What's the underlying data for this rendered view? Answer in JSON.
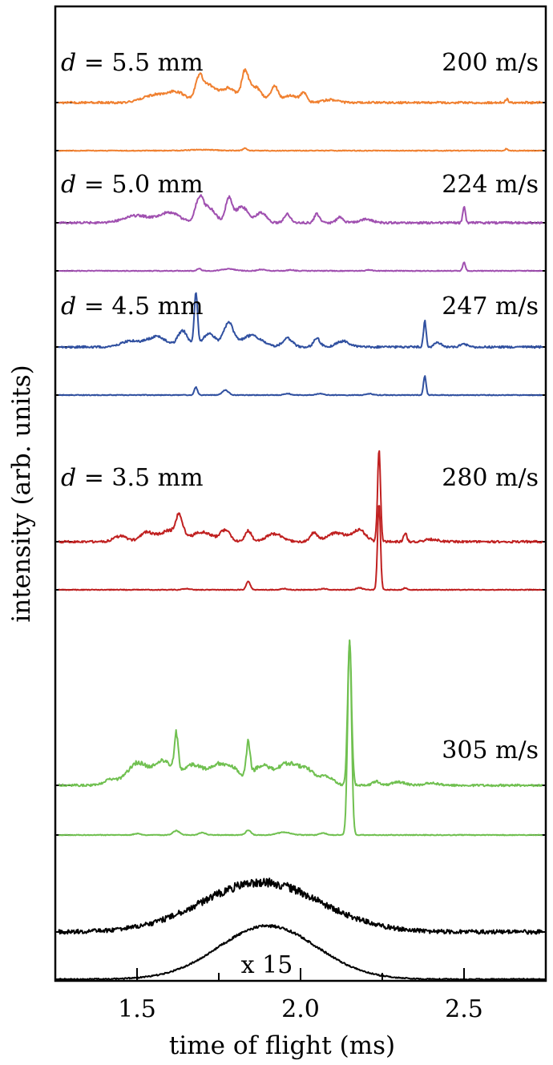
{
  "chart_data": {
    "type": "line",
    "xlabel": "time of flight (ms)",
    "ylabel": "intensity (arb. units)",
    "xlim": [
      1.25,
      2.75
    ],
    "x_ticks": [
      1.5,
      2.0,
      2.5
    ],
    "x_tick_labels": [
      "1.5",
      "2.0",
      "2.5"
    ],
    "x_minor_step": 0.25,
    "grid": false,
    "scale_note": "x 15",
    "panels": [
      {
        "distance_label": "5.5 mm",
        "velocity_label": "200 m/s",
        "color": "#f08030",
        "features": [
          [
            1.55,
            0.1,
            0.035
          ],
          [
            1.62,
            0.14,
            0.03
          ],
          [
            1.69,
            0.3,
            0.012
          ],
          [
            1.72,
            0.22,
            0.02
          ],
          [
            1.78,
            0.2,
            0.025
          ],
          [
            1.83,
            0.36,
            0.01
          ],
          [
            1.86,
            0.22,
            0.02
          ],
          [
            1.92,
            0.22,
            0.012
          ],
          [
            1.97,
            0.1,
            0.02
          ],
          [
            2.01,
            0.12,
            0.01
          ],
          [
            2.09,
            0.04,
            0.02
          ],
          [
            2.63,
            0.05,
            0.004
          ]
        ],
        "lower_features": [
          [
            1.7,
            0.02,
            0.04
          ],
          [
            1.83,
            0.05,
            0.006
          ],
          [
            2.63,
            0.04,
            0.004
          ]
        ]
      },
      {
        "distance_label": "5.0 mm",
        "velocity_label": "224 m/s",
        "color": "#a050b0",
        "features": [
          [
            1.5,
            0.1,
            0.04
          ],
          [
            1.6,
            0.14,
            0.03
          ],
          [
            1.69,
            0.3,
            0.012
          ],
          [
            1.72,
            0.2,
            0.02
          ],
          [
            1.78,
            0.32,
            0.01
          ],
          [
            1.82,
            0.22,
            0.02
          ],
          [
            1.88,
            0.14,
            0.015
          ],
          [
            1.96,
            0.12,
            0.01
          ],
          [
            2.05,
            0.12,
            0.008
          ],
          [
            2.12,
            0.08,
            0.01
          ],
          [
            2.2,
            0.05,
            0.02
          ],
          [
            2.5,
            0.22,
            0.004
          ]
        ],
        "lower_features": [
          [
            1.69,
            0.05,
            0.006
          ],
          [
            1.78,
            0.04,
            0.02
          ],
          [
            1.88,
            0.03,
            0.01
          ],
          [
            1.97,
            0.02,
            0.01
          ],
          [
            2.21,
            0.02,
            0.008
          ],
          [
            2.5,
            0.18,
            0.004
          ]
        ]
      },
      {
        "distance_label": "4.5 mm",
        "velocity_label": "247 m/s",
        "color": "#3050a0",
        "features": [
          [
            1.48,
            0.08,
            0.03
          ],
          [
            1.56,
            0.14,
            0.03
          ],
          [
            1.64,
            0.22,
            0.015
          ],
          [
            1.68,
            0.72,
            0.005
          ],
          [
            1.72,
            0.18,
            0.02
          ],
          [
            1.78,
            0.32,
            0.015
          ],
          [
            1.85,
            0.16,
            0.03
          ],
          [
            1.96,
            0.12,
            0.015
          ],
          [
            2.05,
            0.12,
            0.01
          ],
          [
            2.13,
            0.08,
            0.02
          ],
          [
            2.38,
            0.36,
            0.004
          ],
          [
            2.42,
            0.06,
            0.01
          ],
          [
            2.5,
            0.04,
            0.01
          ]
        ],
        "lower_features": [
          [
            1.68,
            0.16,
            0.005
          ],
          [
            1.77,
            0.1,
            0.01
          ],
          [
            1.96,
            0.03,
            0.01
          ],
          [
            2.06,
            0.03,
            0.01
          ],
          [
            2.21,
            0.03,
            0.01
          ],
          [
            2.38,
            0.4,
            0.004
          ]
        ]
      },
      {
        "distance_label": "3.5 mm",
        "velocity_label": "280 m/s",
        "color": "#c02020",
        "features": [
          [
            1.45,
            0.14,
            0.02
          ],
          [
            1.53,
            0.22,
            0.02
          ],
          [
            1.6,
            0.28,
            0.03
          ],
          [
            1.63,
            0.52,
            0.01
          ],
          [
            1.7,
            0.24,
            0.03
          ],
          [
            1.77,
            0.28,
            0.015
          ],
          [
            1.84,
            0.28,
            0.01
          ],
          [
            1.92,
            0.2,
            0.025
          ],
          [
            2.04,
            0.22,
            0.01
          ],
          [
            2.11,
            0.22,
            0.03
          ],
          [
            2.18,
            0.28,
            0.02
          ],
          [
            2.24,
            2.3,
            0.0045
          ],
          [
            2.32,
            0.22,
            0.005
          ],
          [
            2.4,
            0.06,
            0.02
          ]
        ],
        "lower_features": [
          [
            1.65,
            0.04,
            0.01
          ],
          [
            1.84,
            0.26,
            0.006
          ],
          [
            1.95,
            0.03,
            0.01
          ],
          [
            2.07,
            0.03,
            0.01
          ],
          [
            2.18,
            0.06,
            0.01
          ],
          [
            2.24,
            2.7,
            0.0045
          ],
          [
            2.32,
            0.06,
            0.005
          ]
        ]
      },
      {
        "distance_label": "",
        "velocity_label": "305 m/s",
        "color": "#70c050",
        "features": [
          [
            1.42,
            0.14,
            0.02
          ],
          [
            1.5,
            0.55,
            0.03
          ],
          [
            1.58,
            0.6,
            0.03
          ],
          [
            1.62,
            0.95,
            0.006
          ],
          [
            1.67,
            0.5,
            0.03
          ],
          [
            1.75,
            0.52,
            0.03
          ],
          [
            1.8,
            0.28,
            0.02
          ],
          [
            1.84,
            0.85,
            0.006
          ],
          [
            1.88,
            0.48,
            0.03
          ],
          [
            1.96,
            0.52,
            0.03
          ],
          [
            2.02,
            0.36,
            0.025
          ],
          [
            2.08,
            0.22,
            0.02
          ],
          [
            2.15,
            3.6,
            0.006
          ],
          [
            2.23,
            0.1,
            0.01
          ],
          [
            2.3,
            0.08,
            0.02
          ],
          [
            2.4,
            0.06,
            0.02
          ]
        ],
        "lower_features": [
          [
            1.5,
            0.03,
            0.01
          ],
          [
            1.62,
            0.09,
            0.01
          ],
          [
            1.7,
            0.05,
            0.01
          ],
          [
            1.84,
            0.1,
            0.008
          ],
          [
            1.95,
            0.06,
            0.02
          ],
          [
            2.07,
            0.04,
            0.01
          ],
          [
            2.15,
            4.2,
            0.006
          ]
        ]
      },
      {
        "distance_label": "",
        "velocity_label": "",
        "color": "#000000",
        "features": [
          [
            1.88,
            0.62,
            0.18
          ]
        ],
        "lower_features": [
          [
            1.9,
            0.7,
            0.15
          ]
        ]
      }
    ]
  }
}
